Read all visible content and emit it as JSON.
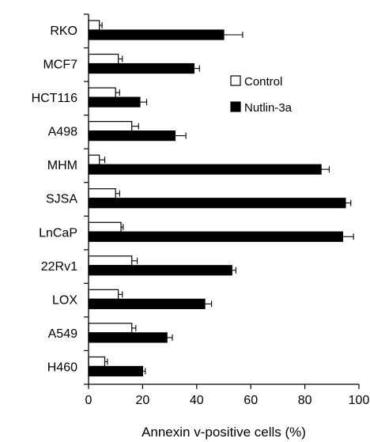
{
  "chart_data": {
    "type": "bar",
    "orientation": "horizontal",
    "categories": [
      "RKO",
      "MCF7",
      "HCT116",
      "A498",
      "MHM",
      "SJSA",
      "LnCaP",
      "22Rv1",
      "LOX",
      "A549",
      "H460"
    ],
    "series": [
      {
        "name": "Control",
        "color": "#ffffff",
        "values": [
          4,
          11,
          10,
          16,
          4,
          10,
          12,
          16,
          11,
          16,
          6
        ],
        "errors": [
          1,
          1.5,
          1.5,
          2.5,
          2,
          1.5,
          0.8,
          2,
          1.5,
          1.5,
          1
        ]
      },
      {
        "name": "Nutlin-3a",
        "color": "#000000",
        "values": [
          50,
          39,
          19,
          32,
          86,
          95,
          94,
          53,
          43,
          29,
          20
        ],
        "errors": [
          7,
          2,
          2.5,
          4,
          3,
          2,
          4,
          1.5,
          2.5,
          2,
          1
        ]
      }
    ],
    "xlabel": "Annexin v-positive cells (%)",
    "xlim": [
      0,
      100
    ],
    "xticks": [
      "0",
      "20",
      "40",
      "60",
      "80",
      "100"
    ],
    "grid": false,
    "legend": {
      "position": "top-right",
      "entries": [
        "Control",
        "Nutlin-3a"
      ]
    }
  }
}
